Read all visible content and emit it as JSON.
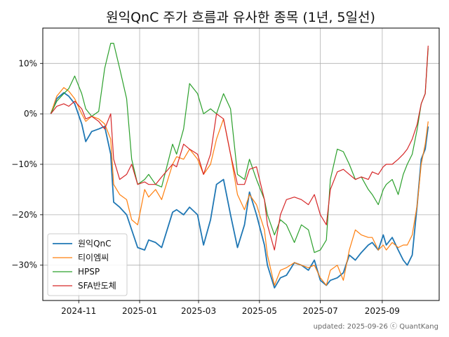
{
  "chart_data": {
    "type": "line",
    "title": "원익QnC 주가 흐름과 유사한 종목 (1년, 5일선)",
    "xlabel": "",
    "ylabel": "",
    "x_ticks": [
      "2024-11",
      "2025-01",
      "2025-03",
      "2025-05",
      "2025-07",
      "2025-09"
    ],
    "x_range": [
      "2024-09-26",
      "2025-10-28"
    ],
    "y_ticks": [
      10,
      0,
      -10,
      -20,
      -30
    ],
    "y_tick_labels": [
      "10%",
      "0%",
      "−10%",
      "−20%",
      "−30%"
    ],
    "ylim": [
      -37,
      17
    ],
    "y_unit": "%",
    "grid": true,
    "legend_position": "lower-left",
    "series": [
      {
        "name": "원익QnC",
        "color": "#1f77b4",
        "points": [
          [
            "2024-10-04",
            0
          ],
          [
            "2024-10-10",
            3
          ],
          [
            "2024-10-17",
            4.2
          ],
          [
            "2024-10-22",
            3.5
          ],
          [
            "2024-10-28",
            2
          ],
          [
            "2024-11-04",
            -2
          ],
          [
            "2024-11-08",
            -5.5
          ],
          [
            "2024-11-14",
            -3.5
          ],
          [
            "2024-11-21",
            -3
          ],
          [
            "2024-11-27",
            -2.5
          ],
          [
            "2024-12-03",
            -8
          ],
          [
            "2024-12-06",
            -17.5
          ],
          [
            "2024-12-12",
            -18.5
          ],
          [
            "2024-12-19",
            -20
          ],
          [
            "2024-12-24",
            -23
          ],
          [
            "2024-12-30",
            -26.5
          ],
          [
            "2025-01-06",
            -27
          ],
          [
            "2025-01-10",
            -25
          ],
          [
            "2025-01-17",
            -25.5
          ],
          [
            "2025-01-23",
            -26.5
          ],
          [
            "2025-02-03",
            -19.5
          ],
          [
            "2025-02-07",
            -19
          ],
          [
            "2025-02-14",
            -20
          ],
          [
            "2025-02-20",
            -18.5
          ],
          [
            "2025-02-28",
            -20
          ],
          [
            "2025-03-06",
            -26
          ],
          [
            "2025-03-13",
            -21
          ],
          [
            "2025-03-19",
            -14
          ],
          [
            "2025-03-26",
            -13
          ],
          [
            "2025-04-02",
            -20
          ],
          [
            "2025-04-09",
            -26.5
          ],
          [
            "2025-04-16",
            -22
          ],
          [
            "2025-04-21",
            -15.5
          ],
          [
            "2025-04-28",
            -20
          ],
          [
            "2025-05-06",
            -26
          ],
          [
            "2025-05-09",
            -30
          ],
          [
            "2025-05-16",
            -34.5
          ],
          [
            "2025-05-22",
            -32.5
          ],
          [
            "2025-05-28",
            -32
          ],
          [
            "2025-06-05",
            -29.5
          ],
          [
            "2025-06-12",
            -30
          ],
          [
            "2025-06-19",
            -31
          ],
          [
            "2025-06-25",
            -29
          ],
          [
            "2025-07-01",
            -33
          ],
          [
            "2025-07-07",
            -34
          ],
          [
            "2025-07-11",
            -33
          ],
          [
            "2025-07-18",
            -32.5
          ],
          [
            "2025-07-24",
            -31.5
          ],
          [
            "2025-07-30",
            -28
          ],
          [
            "2025-08-05",
            -29
          ],
          [
            "2025-08-11",
            -27.5
          ],
          [
            "2025-08-18",
            -26
          ],
          [
            "2025-08-22",
            -25.5
          ],
          [
            "2025-08-28",
            -27
          ],
          [
            "2025-09-02",
            -24
          ],
          [
            "2025-09-05",
            -26
          ],
          [
            "2025-09-11",
            -24.5
          ],
          [
            "2025-09-17",
            -27
          ],
          [
            "2025-09-22",
            -29
          ],
          [
            "2025-09-26",
            -30
          ],
          [
            "2025-10-01",
            -28
          ],
          [
            "2025-10-06",
            -18
          ],
          [
            "2025-10-10",
            -9
          ],
          [
            "2025-10-14",
            -7
          ],
          [
            "2025-10-17",
            -2.5
          ]
        ]
      },
      {
        "name": "티이엠씨",
        "color": "#ff7f0e",
        "points": [
          [
            "2024-10-04",
            0
          ],
          [
            "2024-10-10",
            3.5
          ],
          [
            "2024-10-17",
            5.2
          ],
          [
            "2024-10-22",
            4.5
          ],
          [
            "2024-10-28",
            3
          ],
          [
            "2024-11-04",
            0
          ],
          [
            "2024-11-08",
            -1.5
          ],
          [
            "2024-11-14",
            -0.5
          ],
          [
            "2024-11-21",
            -1
          ],
          [
            "2024-11-27",
            -2
          ],
          [
            "2024-12-03",
            -5
          ],
          [
            "2024-12-06",
            -14
          ],
          [
            "2024-12-12",
            -16
          ],
          [
            "2024-12-19",
            -17
          ],
          [
            "2024-12-24",
            -21
          ],
          [
            "2024-12-30",
            -22
          ],
          [
            "2025-01-06",
            -15
          ],
          [
            "2025-01-10",
            -16.5
          ],
          [
            "2025-01-17",
            -15
          ],
          [
            "2025-01-23",
            -17
          ],
          [
            "2025-02-03",
            -10
          ],
          [
            "2025-02-07",
            -8.5
          ],
          [
            "2025-02-14",
            -9
          ],
          [
            "2025-02-20",
            -7
          ],
          [
            "2025-02-28",
            -9
          ],
          [
            "2025-03-06",
            -12
          ],
          [
            "2025-03-13",
            -10
          ],
          [
            "2025-03-19",
            -5
          ],
          [
            "2025-03-26",
            -1
          ],
          [
            "2025-04-02",
            -8
          ],
          [
            "2025-04-09",
            -16
          ],
          [
            "2025-04-16",
            -19
          ],
          [
            "2025-04-21",
            -16
          ],
          [
            "2025-04-28",
            -18
          ],
          [
            "2025-05-06",
            -23
          ],
          [
            "2025-05-09",
            -28
          ],
          [
            "2025-05-16",
            -34
          ],
          [
            "2025-05-22",
            -31
          ],
          [
            "2025-05-28",
            -30.5
          ],
          [
            "2025-06-05",
            -29.5
          ],
          [
            "2025-06-12",
            -30
          ],
          [
            "2025-06-19",
            -30.5
          ],
          [
            "2025-06-25",
            -30
          ],
          [
            "2025-07-01",
            -32.5
          ],
          [
            "2025-07-07",
            -34
          ],
          [
            "2025-07-11",
            -31
          ],
          [
            "2025-07-18",
            -30
          ],
          [
            "2025-07-24",
            -33
          ],
          [
            "2025-07-30",
            -27
          ],
          [
            "2025-08-05",
            -23
          ],
          [
            "2025-08-11",
            -24
          ],
          [
            "2025-08-18",
            -24.5
          ],
          [
            "2025-08-22",
            -24.5
          ],
          [
            "2025-08-28",
            -27
          ],
          [
            "2025-09-02",
            -26
          ],
          [
            "2025-09-05",
            -27
          ],
          [
            "2025-09-11",
            -25.5
          ],
          [
            "2025-09-17",
            -26.5
          ],
          [
            "2025-09-22",
            -26
          ],
          [
            "2025-09-26",
            -26
          ],
          [
            "2025-10-01",
            -24
          ],
          [
            "2025-10-06",
            -18
          ],
          [
            "2025-10-10",
            -10
          ],
          [
            "2025-10-14",
            -6
          ],
          [
            "2025-10-17",
            -1.5
          ]
        ]
      },
      {
        "name": "HPSP",
        "color": "#2ca02c",
        "points": [
          [
            "2024-10-04",
            0
          ],
          [
            "2024-10-10",
            2.5
          ],
          [
            "2024-10-17",
            4
          ],
          [
            "2024-10-22",
            5
          ],
          [
            "2024-10-28",
            7.5
          ],
          [
            "2024-11-04",
            4
          ],
          [
            "2024-11-08",
            1
          ],
          [
            "2024-11-14",
            -0.5
          ],
          [
            "2024-11-21",
            0.5
          ],
          [
            "2024-11-27",
            9
          ],
          [
            "2024-12-03",
            14
          ],
          [
            "2024-12-06",
            14
          ],
          [
            "2024-12-12",
            9
          ],
          [
            "2024-12-19",
            3
          ],
          [
            "2024-12-24",
            -9
          ],
          [
            "2024-12-30",
            -14
          ],
          [
            "2025-01-06",
            -13
          ],
          [
            "2025-01-10",
            -12
          ],
          [
            "2025-01-17",
            -14
          ],
          [
            "2025-01-23",
            -14.5
          ],
          [
            "2025-02-03",
            -6
          ],
          [
            "2025-02-07",
            -8
          ],
          [
            "2025-02-14",
            -3
          ],
          [
            "2025-02-20",
            6
          ],
          [
            "2025-02-28",
            4
          ],
          [
            "2025-03-06",
            0
          ],
          [
            "2025-03-13",
            1
          ],
          [
            "2025-03-19",
            0
          ],
          [
            "2025-03-26",
            4
          ],
          [
            "2025-04-02",
            1
          ],
          [
            "2025-04-09",
            -12
          ],
          [
            "2025-04-16",
            -13
          ],
          [
            "2025-04-21",
            -9
          ],
          [
            "2025-04-28",
            -13
          ],
          [
            "2025-05-06",
            -17
          ],
          [
            "2025-05-09",
            -20
          ],
          [
            "2025-05-16",
            -24
          ],
          [
            "2025-05-22",
            -21
          ],
          [
            "2025-05-28",
            -22
          ],
          [
            "2025-06-05",
            -25.5
          ],
          [
            "2025-06-12",
            -22
          ],
          [
            "2025-06-19",
            -23
          ],
          [
            "2025-06-25",
            -27.5
          ],
          [
            "2025-07-01",
            -27
          ],
          [
            "2025-07-07",
            -25
          ],
          [
            "2025-07-11",
            -13
          ],
          [
            "2025-07-18",
            -7
          ],
          [
            "2025-07-24",
            -7.5
          ],
          [
            "2025-07-30",
            -10
          ],
          [
            "2025-08-05",
            -13
          ],
          [
            "2025-08-11",
            -12.5
          ],
          [
            "2025-08-18",
            -15
          ],
          [
            "2025-08-22",
            -16
          ],
          [
            "2025-08-28",
            -18
          ],
          [
            "2025-09-02",
            -15
          ],
          [
            "2025-09-05",
            -14
          ],
          [
            "2025-09-11",
            -13
          ],
          [
            "2025-09-17",
            -16
          ],
          [
            "2025-09-22",
            -12
          ],
          [
            "2025-09-26",
            -10
          ],
          [
            "2025-10-01",
            -8
          ],
          [
            "2025-10-06",
            -3
          ],
          [
            "2025-10-10",
            2
          ],
          [
            "2025-10-14",
            4
          ],
          [
            "2025-10-17",
            13
          ]
        ]
      },
      {
        "name": "SFA반도체",
        "color": "#d62728",
        "points": [
          [
            "2024-10-04",
            0
          ],
          [
            "2024-10-10",
            1.5
          ],
          [
            "2024-10-17",
            2
          ],
          [
            "2024-10-22",
            1.5
          ],
          [
            "2024-10-28",
            2.5
          ],
          [
            "2024-11-04",
            1
          ],
          [
            "2024-11-08",
            -1
          ],
          [
            "2024-11-14",
            -0.5
          ],
          [
            "2024-11-21",
            -1.5
          ],
          [
            "2024-11-27",
            -3
          ],
          [
            "2024-12-03",
            0
          ],
          [
            "2024-12-06",
            -9
          ],
          [
            "2024-12-12",
            -13
          ],
          [
            "2024-12-19",
            -12
          ],
          [
            "2024-12-24",
            -10
          ],
          [
            "2024-12-30",
            -14
          ],
          [
            "2025-01-06",
            -13.5
          ],
          [
            "2025-01-10",
            -14
          ],
          [
            "2025-01-17",
            -14
          ],
          [
            "2025-01-23",
            -12.5
          ],
          [
            "2025-02-03",
            -10
          ],
          [
            "2025-02-07",
            -10.5
          ],
          [
            "2025-02-14",
            -6
          ],
          [
            "2025-02-20",
            -7
          ],
          [
            "2025-02-28",
            -8
          ],
          [
            "2025-03-06",
            -12
          ],
          [
            "2025-03-13",
            -8
          ],
          [
            "2025-03-19",
            0
          ],
          [
            "2025-03-26",
            -1
          ],
          [
            "2025-04-02",
            -8
          ],
          [
            "2025-04-09",
            -14
          ],
          [
            "2025-04-16",
            -14
          ],
          [
            "2025-04-21",
            -11
          ],
          [
            "2025-04-28",
            -10.5
          ],
          [
            "2025-05-06",
            -17
          ],
          [
            "2025-05-09",
            -22
          ],
          [
            "2025-05-16",
            -27
          ],
          [
            "2025-05-22",
            -20
          ],
          [
            "2025-05-28",
            -17
          ],
          [
            "2025-06-05",
            -16.5
          ],
          [
            "2025-06-12",
            -17
          ],
          [
            "2025-06-19",
            -18
          ],
          [
            "2025-06-25",
            -16
          ],
          [
            "2025-07-01",
            -20
          ],
          [
            "2025-07-07",
            -22
          ],
          [
            "2025-07-11",
            -15
          ],
          [
            "2025-07-18",
            -11.5
          ],
          [
            "2025-07-24",
            -11
          ],
          [
            "2025-07-30",
            -12
          ],
          [
            "2025-08-05",
            -13
          ],
          [
            "2025-08-11",
            -12.5
          ],
          [
            "2025-08-18",
            -13
          ],
          [
            "2025-08-22",
            -11.5
          ],
          [
            "2025-08-28",
            -12
          ],
          [
            "2025-09-02",
            -10.5
          ],
          [
            "2025-09-05",
            -10
          ],
          [
            "2025-09-11",
            -10
          ],
          [
            "2025-09-17",
            -9
          ],
          [
            "2025-09-22",
            -8
          ],
          [
            "2025-09-26",
            -7
          ],
          [
            "2025-10-01",
            -5
          ],
          [
            "2025-10-06",
            -2
          ],
          [
            "2025-10-10",
            2
          ],
          [
            "2025-10-14",
            4
          ],
          [
            "2025-10-17",
            13.5
          ]
        ]
      }
    ]
  },
  "footer": "updated: 2025-09-26 ⓒ QuantKang"
}
